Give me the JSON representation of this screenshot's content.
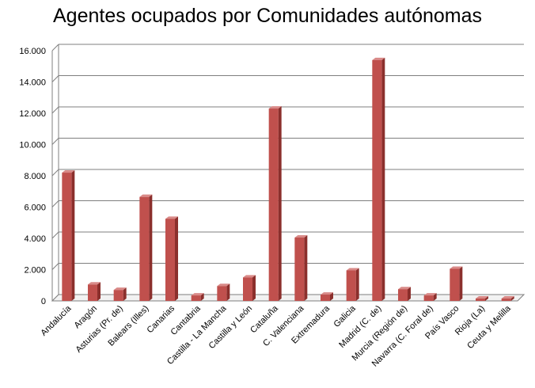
{
  "chart_data": {
    "type": "bar",
    "title": "Agentes ocupados por Comunidades autónomas",
    "xlabel": "",
    "ylabel": "",
    "ylim": [
      0,
      16000
    ],
    "ytick_labels": [
      "0",
      "2.000",
      "4.000",
      "6.000",
      "8.000",
      "10.000",
      "12.000",
      "14.000",
      "16.000"
    ],
    "grid": true,
    "legend": "none",
    "bar_color": "#c0504d",
    "categories": [
      "Andalucía",
      "Aragón",
      "Asturias (Pr. de)",
      "Balears (Illes)",
      "Canarias",
      "Cantabria",
      "Castilla - La Mancha",
      "Castilla y León",
      "Cataluña",
      "C. Valenciana",
      "Extremadura",
      "Galicia",
      "Madrid (C. de)",
      "Murcia (Región de)",
      "Navarra (C. Foral de)",
      "País Vasco",
      "Rioja (La)",
      "Ceuta y Melilla"
    ],
    "values": [
      8200,
      1050,
      700,
      6650,
      5250,
      350,
      950,
      1500,
      12300,
      4050,
      400,
      1950,
      15400,
      750,
      350,
      2050,
      150,
      150
    ]
  }
}
